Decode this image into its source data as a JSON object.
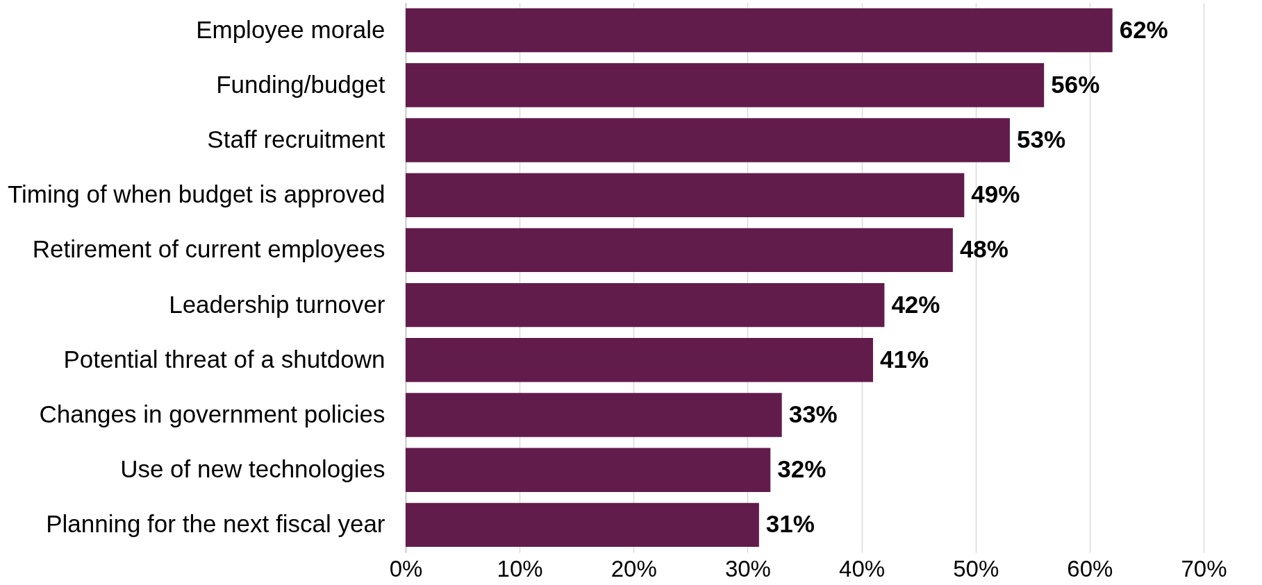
{
  "chart_data": {
    "type": "bar",
    "orientation": "horizontal",
    "categories": [
      "Employee morale",
      "Funding/budget",
      "Staff recruitment",
      "Timing of when budget is approved",
      "Retirement of current employees",
      "Leadership turnover",
      "Potential threat of a shutdown",
      "Changes in government policies",
      "Use of new technologies",
      "Planning for the next fiscal year"
    ],
    "values": [
      62,
      56,
      53,
      49,
      48,
      42,
      41,
      33,
      32,
      31
    ],
    "value_labels": [
      "62%",
      "56%",
      "53%",
      "49%",
      "48%",
      "42%",
      "41%",
      "33%",
      "32%",
      "31%"
    ],
    "color": "#621c4c",
    "xlim": [
      0,
      70
    ],
    "xticks": [
      {
        "value": 0,
        "label": "0%"
      },
      {
        "value": 10,
        "label": "10%"
      },
      {
        "value": 20,
        "label": "20%"
      },
      {
        "value": 30,
        "label": "30%"
      },
      {
        "value": 40,
        "label": "40%"
      },
      {
        "value": 50,
        "label": "50%"
      },
      {
        "value": 60,
        "label": "60%"
      },
      {
        "value": 70,
        "label": "70%"
      }
    ],
    "grid": "x"
  }
}
